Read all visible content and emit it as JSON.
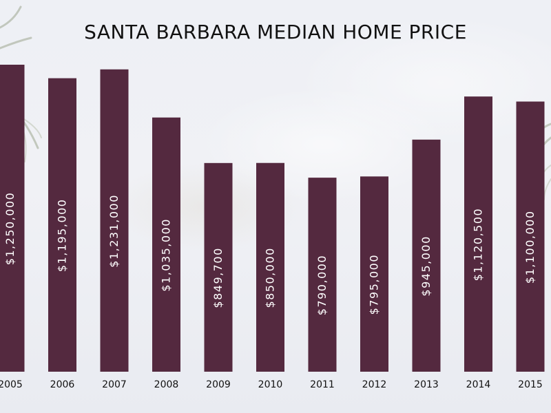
{
  "chart_data": {
    "type": "bar",
    "title": "SANTA BARBARA MEDIAN HOME PRICE",
    "categories": [
      "2005",
      "2006",
      "2007",
      "2008",
      "2009",
      "2010",
      "2011",
      "2012",
      "2013",
      "2014",
      "2015"
    ],
    "values": [
      1250000,
      1195000,
      1231000,
      1035000,
      849700,
      850000,
      790000,
      795000,
      945000,
      1120500,
      1100000
    ],
    "data_labels": [
      "$1,250,000",
      "$1,195,000",
      "$1,231,000",
      "$1,035,000",
      "$849,700",
      "$850,000",
      "$790,000",
      "$795,000",
      "$945,000",
      "$1,120,500",
      "$1,100,000"
    ],
    "bar_color": "#54293f",
    "xlabel": "",
    "ylabel": "",
    "grid": false
  }
}
